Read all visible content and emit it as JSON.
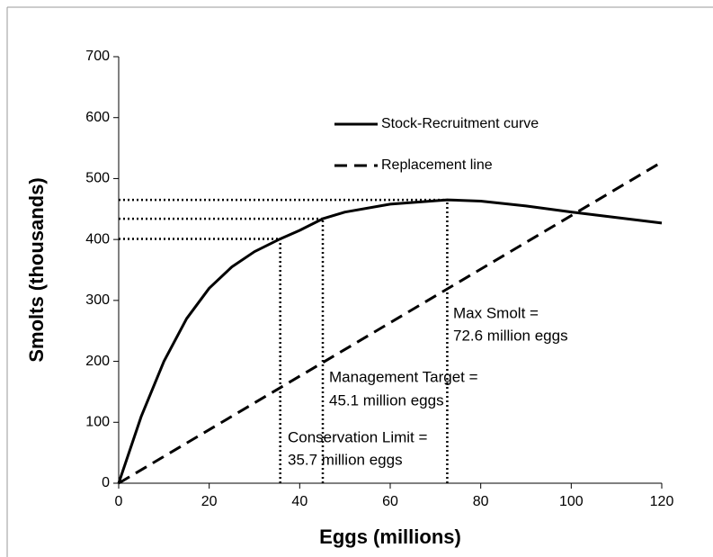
{
  "chart_data": {
    "type": "line",
    "xlabel": "Eggs (millions)",
    "ylabel": "Smolts (thousands)",
    "xlim": [
      0,
      120
    ],
    "xticks": [
      0,
      20,
      40,
      60,
      80,
      100,
      120
    ],
    "ylim": [
      0,
      700
    ],
    "yticks": [
      0,
      100,
      200,
      300,
      400,
      500,
      600,
      700
    ],
    "grid": false,
    "series": [
      {
        "name": "Stock-Recruitment curve",
        "color": "#000000",
        "style": "solid",
        "x": [
          0,
          5,
          10,
          15,
          20,
          25,
          30,
          35.7,
          40,
          45.1,
          50,
          60,
          72.6,
          80,
          90,
          100,
          110,
          120
        ],
        "values": [
          0,
          110,
          200,
          270,
          320,
          355,
          380,
          401,
          415,
          434,
          445,
          458,
          465,
          463,
          455,
          445,
          436,
          427
        ]
      },
      {
        "name": "Replacement line",
        "color": "#000000",
        "style": "dashed",
        "x": [
          0,
          120
        ],
        "values": [
          0,
          527
        ]
      }
    ],
    "reference_points": {
      "x": [
        35.7,
        45.1,
        72.6
      ],
      "y": [
        401,
        434,
        465
      ]
    },
    "annotations": [
      [
        "Conservation  Limit =",
        "35.7 million eggs"
      ],
      [
        "Management Target =",
        "45.1 million eggs"
      ],
      [
        "Max Smolt =",
        "72.6 million eggs"
      ]
    ]
  }
}
